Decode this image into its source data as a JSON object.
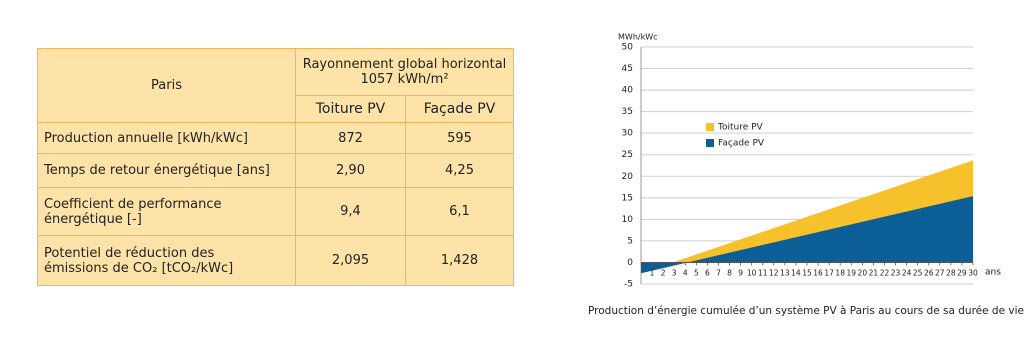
{
  "table": {
    "header": {
      "city": "Paris",
      "group": [
        "Rayonnement global horizontal",
        "1057 kWh/m²"
      ],
      "columns": [
        "Toiture PV",
        "Façade PV"
      ]
    },
    "rows": [
      {
        "label": [
          "Production annuelle [kWh/kWc]"
        ],
        "values": [
          "872",
          "595"
        ]
      },
      {
        "label": [
          "Temps de retour énergétique [ans]"
        ],
        "values": [
          "2,90",
          "4,25"
        ]
      },
      {
        "label": [
          "Coefficient  de performance",
          "énergétique [-]"
        ],
        "values": [
          "9,4",
          "6,1"
        ]
      },
      {
        "label": [
          "Potentiel de réduction des",
          "émissions de CO₂ [tCO₂/kWc]"
        ],
        "values": [
          "2,095",
          "1,428"
        ]
      }
    ]
  },
  "chart_data": {
    "type": "area",
    "y_label": "MWh/kWc",
    "x_label": "ans",
    "caption": "Production d’énergie cumulée d’un système PV à Paris au cours de sa durée de vie",
    "x": [
      0,
      30
    ],
    "series": [
      {
        "name": "Toiture PV",
        "color": "#f6c12a",
        "values": [
          -2.5,
          23.7
        ]
      },
      {
        "name": "Façade PV",
        "color": "#0b5f96",
        "values": [
          -2.5,
          15.4
        ]
      }
    ],
    "xlim": [
      0,
      30
    ],
    "xticks": [
      1,
      2,
      3,
      4,
      5,
      6,
      7,
      8,
      9,
      10,
      11,
      12,
      13,
      14,
      15,
      16,
      17,
      18,
      19,
      20,
      21,
      22,
      23,
      24,
      25,
      26,
      27,
      28,
      29,
      30
    ],
    "ylim": [
      -5,
      50
    ],
    "yticks": [
      -5,
      0,
      5,
      10,
      15,
      20,
      25,
      30,
      35,
      40,
      45,
      50
    ],
    "grid": true
  }
}
